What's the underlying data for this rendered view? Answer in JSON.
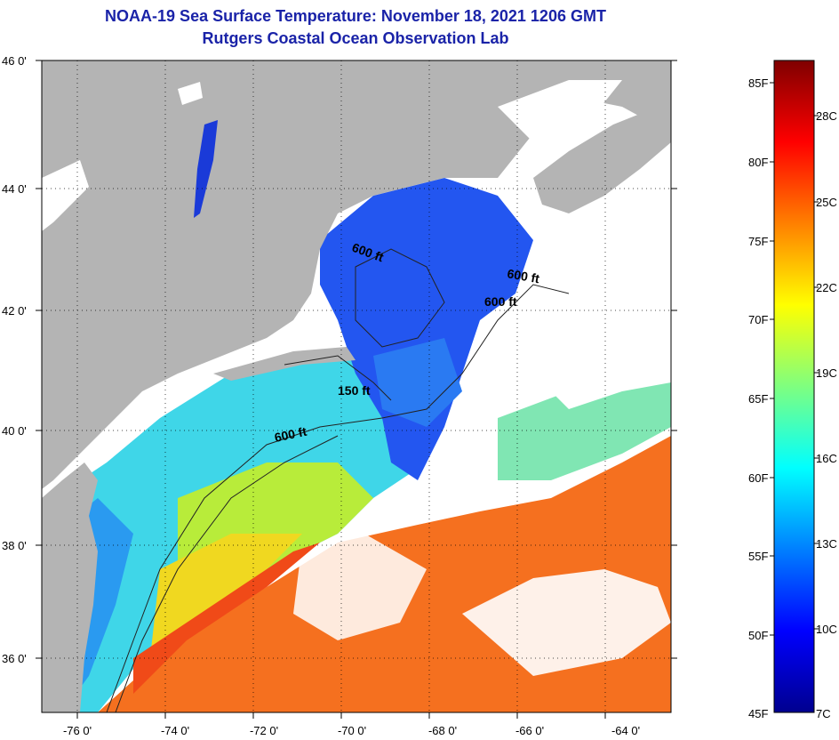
{
  "title": "NOAA-19 Sea Surface Temperature:  November 18, 2021 1206 GMT",
  "subtitle": "Rutgers Coastal Ocean Observation Lab",
  "lat_labels": [
    "46 0'",
    "44 0'",
    "42 0'",
    "40 0'",
    "38 0'",
    "36 0'"
  ],
  "lon_labels": [
    "-76 0'",
    "-74 0'",
    "-72 0'",
    "-70 0'",
    "-68 0'",
    "-66 0'",
    "-64 0'"
  ],
  "contour_labels": [
    "600 ft",
    "600 ft",
    "600 ft",
    "150 ft",
    "600 ft"
  ],
  "colorbar": {
    "fahrenheit": [
      "85F",
      "80F",
      "75F",
      "70F",
      "65F",
      "60F",
      "55F",
      "50F",
      "45F"
    ],
    "celsius": [
      "28C",
      "25C",
      "22C",
      "19C",
      "16C",
      "13C",
      "10C",
      "7C"
    ]
  },
  "colors": {
    "land": "#b4b4b4",
    "cloud": "#ffffff",
    "title": "#1a23a8"
  }
}
